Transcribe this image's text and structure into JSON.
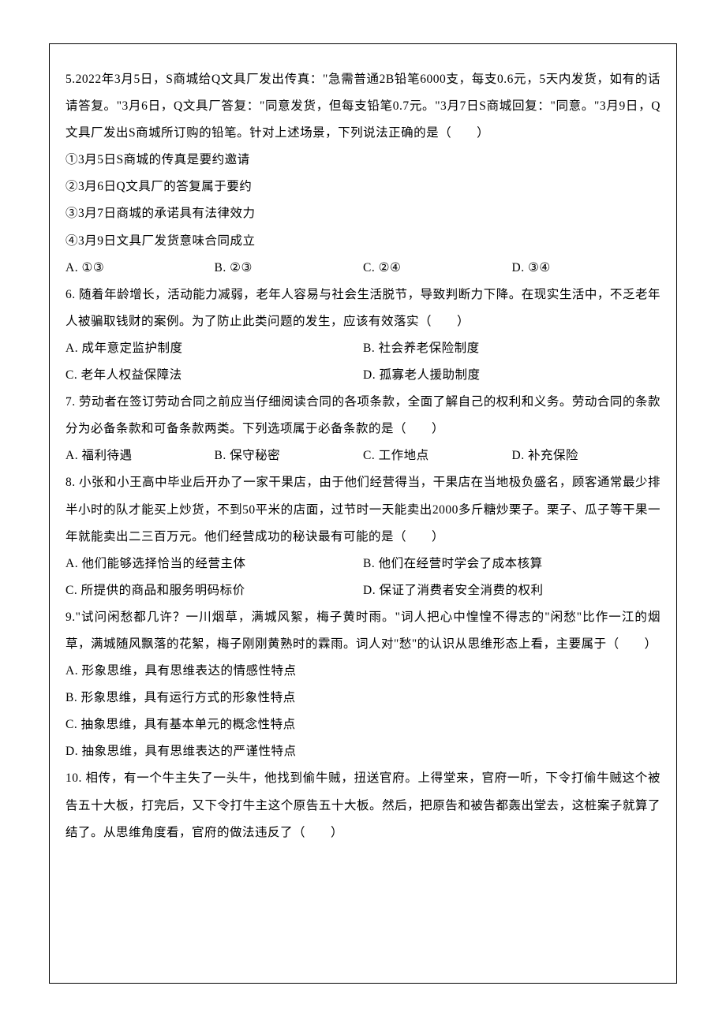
{
  "q5": {
    "stem": "5.2022年3月5日，S商城给Q文具厂发出传真：\"急需普通2B铅笔6000支，每支0.6元，5天内发货，如有的话请答复。\"3月6日，Q文具厂答复：\"同意发货，但每支铅笔0.7元。\"3月7日S商城回复：\"同意。\"3月9日，Q文具厂发出S商城所订购的铅笔。针对上述场景，下列说法正确的是（　　）",
    "s1": "①3月5日S商城的传真是要约邀请",
    "s2": "②3月6日Q文具厂的答复属于要约",
    "s3": "③3月7日商城的承诺具有法律效力",
    "s4": "④3月9日文具厂发货意味合同成立",
    "optA": "A. ①③",
    "optB": "B. ②③",
    "optC": "C. ②④",
    "optD": "D. ③④"
  },
  "q6": {
    "stem": "6. 随着年龄增长，活动能力减弱，老年人容易与社会生活脱节，导致判断力下降。在现实生活中，不乏老年人被骗取钱财的案例。为了防止此类问题的发生，应该有效落实（　　）",
    "optA": "A. 成年意定监护制度",
    "optB": "B. 社会养老保险制度",
    "optC": "C. 老年人权益保障法",
    "optD": "D. 孤寡老人援助制度"
  },
  "q7": {
    "stem": "7. 劳动者在签订劳动合同之前应当仔细阅读合同的各项条款，全面了解自己的权利和义务。劳动合同的条款分为必备条款和可备条款两类。下列选项属于必备条款的是（　　）",
    "optA": "A. 福利待遇",
    "optB": "B. 保守秘密",
    "optC": "C. 工作地点",
    "optD": "D. 补充保险"
  },
  "q8": {
    "stem": "8. 小张和小王高中毕业后开办了一家干果店，由于他们经营得当，干果店在当地极负盛名，顾客通常最少排半小时的队才能买上炒货，不到50平米的店面，过节时一天能卖出2000多斤糖炒栗子。栗子、瓜子等干果一年就能卖出二三百万元。他们经营成功的秘诀最有可能的是（　　）",
    "optA": "A. 他们能够选择恰当的经营主体",
    "optB": "B. 他们在经营时学会了成本核算",
    "optC": "C. 所提供的商品和服务明码标价",
    "optD": "D. 保证了消费者安全消费的权利"
  },
  "q9": {
    "stem": "9.\"试问闲愁都几许？一川烟草，满城风絮，梅子黄时雨。\"词人把心中惶惶不得志的\"闲愁\"比作一江的烟草，满城随风飘落的花絮，梅子刚刚黄熟时的霖雨。词人对\"愁\"的认识从思维形态上看，主要属于（　　）",
    "optA": "A. 形象思维，具有思维表达的情感性特点",
    "optB": "B. 形象思维，具有运行方式的形象性特点",
    "optC": "C. 抽象思维，具有基本单元的概念性特点",
    "optD": "D. 抽象思维，具有思维表达的严谨性特点"
  },
  "q10": {
    "stem": "10. 相传，有一个牛主失了一头牛，他找到偷牛贼，扭送官府。上得堂来，官府一听，下令打偷牛贼这个被告五十大板，打完后，又下令打牛主这个原告五十大板。然后，把原告和被告都轰出堂去，这桩案子就算了结了。从思维角度看，官府的做法违反了（　　）"
  }
}
